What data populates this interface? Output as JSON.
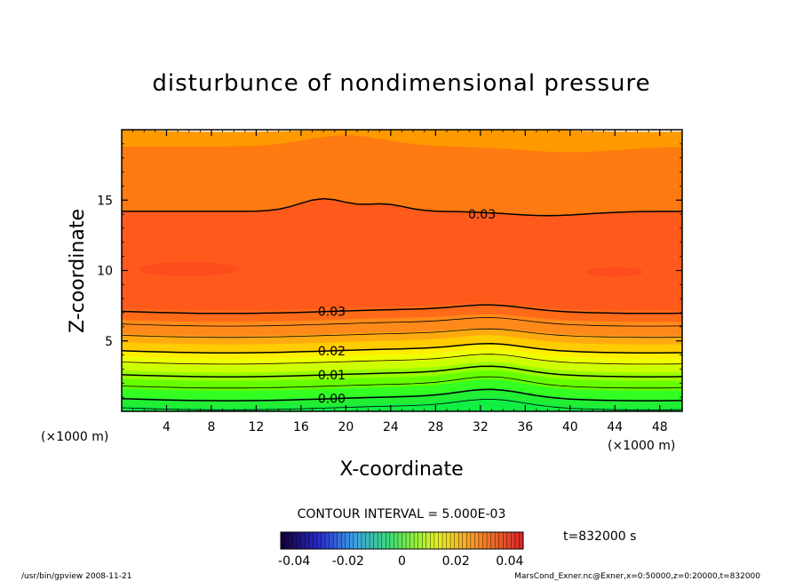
{
  "chart_data": {
    "type": "contour",
    "title": "disturbunce of nondimensional pressure",
    "xlabel": "X-coordinate",
    "ylabel": "Z-coordinate",
    "x_unit_left": "(×1000 m)",
    "x_unit_right": "(×1000 m)",
    "xlim": [
      0,
      50
    ],
    "ylim": [
      0,
      20
    ],
    "x_ticks": [
      4,
      8,
      12,
      16,
      20,
      24,
      28,
      32,
      36,
      40,
      44,
      48
    ],
    "y_ticks": [
      5,
      10,
      15
    ],
    "contour_labels": [
      {
        "text": "0.03",
        "x": 30.9,
        "y": 14.0
      },
      {
        "text": "0.03",
        "x": 17.5,
        "y": 7.1
      },
      {
        "text": "0.02",
        "x": 17.5,
        "y": 4.3
      },
      {
        "text": "0.01",
        "x": 17.5,
        "y": 2.6
      },
      {
        "text": "0.00",
        "x": 17.5,
        "y": 0.9
      }
    ],
    "contour_interval_text": "CONTOUR INTERVAL = 5.000E-03",
    "time_text": "t=832000 s",
    "colorbar": {
      "range": [
        -0.045,
        0.045
      ],
      "tick_labels": [
        "-0.04",
        "-0.02",
        "0",
        "0.02",
        "0.04"
      ],
      "tick_values": [
        -0.04,
        -0.02,
        0,
        0.02,
        0.04
      ]
    },
    "grid": false
  },
  "footer": {
    "left": "/usr/bin/gpview   2008-11-21",
    "right": "MarsCond_Exner.nc@Exner,x=0:50000,z=0:20000,t=832000"
  }
}
